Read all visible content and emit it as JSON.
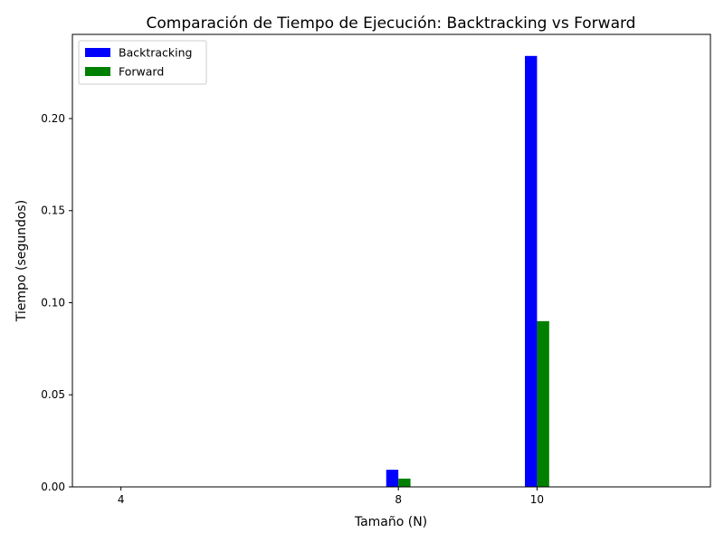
{
  "chart_data": {
    "type": "bar",
    "title": "Comparación de Tiempo de Ejecución: Backtracking vs Forward",
    "xlabel": "Tamaño (N)",
    "ylabel": "Tiempo (segundos)",
    "x": [
      4,
      8,
      10
    ],
    "x_ticks": [
      "4",
      "8",
      "10"
    ],
    "xlim": [
      3.3,
      12.5
    ],
    "ylim": [
      0,
      0.2457
    ],
    "y_ticks": [
      0.0,
      0.05,
      0.1,
      0.15,
      0.2
    ],
    "y_tick_labels": [
      "0.00",
      "0.05",
      "0.10",
      "0.15",
      "0.20"
    ],
    "bar_width": 0.35,
    "legend_position": "top-left",
    "grid": false,
    "series": [
      {
        "name": "Backtracking",
        "color": "#0000ff",
        "values": [
          0.0001,
          0.0093,
          0.234
        ]
      },
      {
        "name": "Forward",
        "color": "#008000",
        "values": [
          0.0001,
          0.0045,
          0.09
        ]
      }
    ]
  }
}
